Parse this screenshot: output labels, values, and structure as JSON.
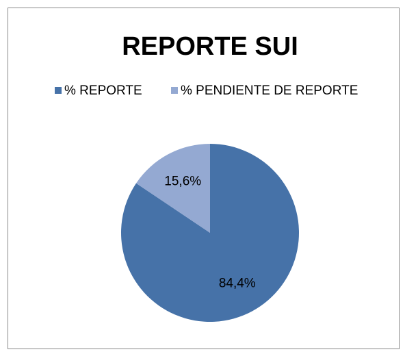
{
  "chart_data": {
    "type": "pie",
    "title": "REPORTE SUI",
    "categories": [
      "% REPORTE",
      "% PENDIENTE DE REPORTE"
    ],
    "values": [
      84.4,
      15.6
    ],
    "value_labels": [
      "84,4%",
      "15,6%"
    ],
    "colors": [
      "#4672a8",
      "#94a9d2"
    ],
    "legend": "top"
  }
}
